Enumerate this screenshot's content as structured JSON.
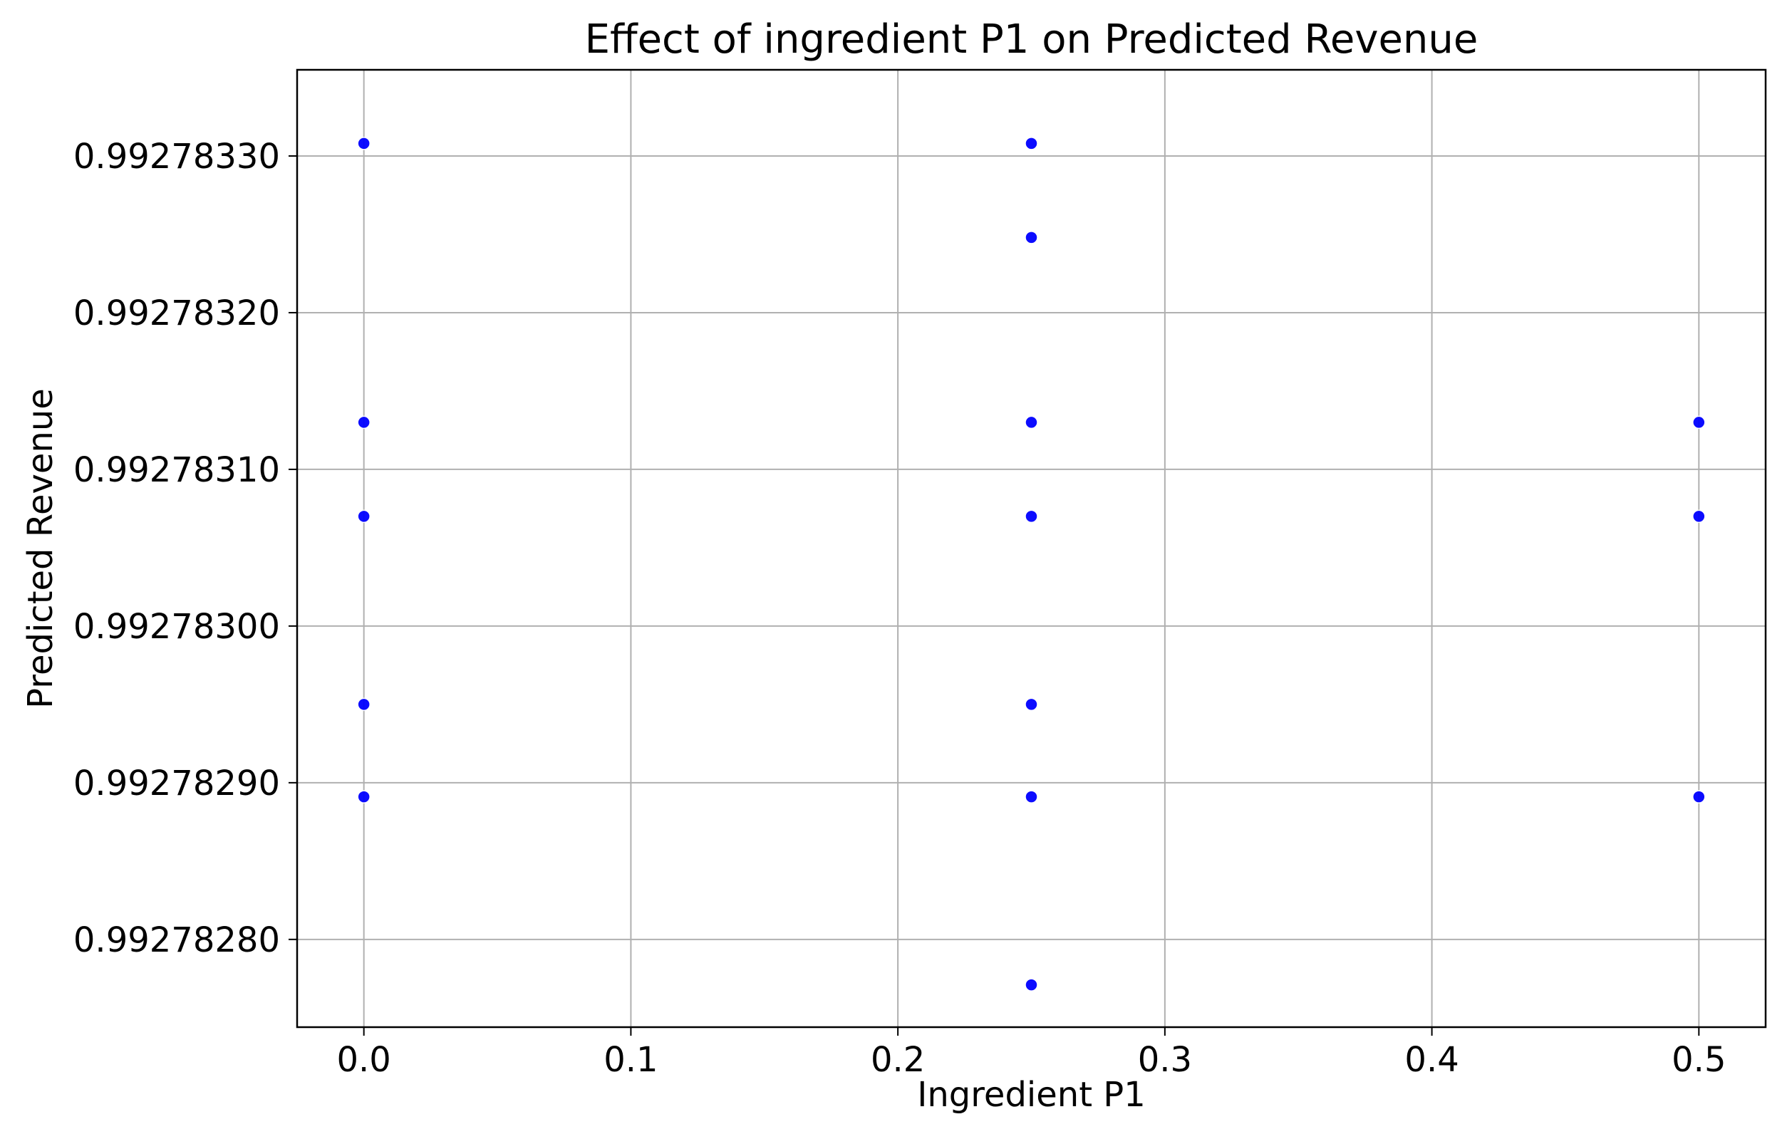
{
  "chart_data": {
    "type": "scatter",
    "title": "Effect of ingredient P1 on Predicted Revenue",
    "xlabel": "Ingredient P1",
    "ylabel": "Predicted Revenue",
    "xlim": [
      -0.025,
      0.525
    ],
    "ylim": [
      0.992782744,
      0.992783355
    ],
    "x_ticks": [
      0.0,
      0.1,
      0.2,
      0.3,
      0.4,
      0.5
    ],
    "x_tick_labels": [
      "0.0",
      "0.1",
      "0.2",
      "0.3",
      "0.4",
      "0.5"
    ],
    "y_ticks": [
      0.9927828,
      0.9927829,
      0.992783,
      0.9927831,
      0.9927832,
      0.9927833
    ],
    "y_tick_labels": [
      "0.99278280",
      "0.99278290",
      "0.99278300",
      "0.99278310",
      "0.99278320",
      "0.99278330"
    ],
    "grid": true,
    "legend": "none",
    "marker_color": "#0000ff",
    "points": [
      {
        "x": 0.0,
        "y": 0.992783308
      },
      {
        "x": 0.0,
        "y": 0.99278313
      },
      {
        "x": 0.0,
        "y": 0.99278307
      },
      {
        "x": 0.0,
        "y": 0.99278295
      },
      {
        "x": 0.0,
        "y": 0.992782891
      },
      {
        "x": 0.25,
        "y": 0.992783308
      },
      {
        "x": 0.25,
        "y": 0.992783248
      },
      {
        "x": 0.25,
        "y": 0.99278313
      },
      {
        "x": 0.25,
        "y": 0.99278307
      },
      {
        "x": 0.25,
        "y": 0.99278295
      },
      {
        "x": 0.25,
        "y": 0.992782891
      },
      {
        "x": 0.25,
        "y": 0.992782771
      },
      {
        "x": 0.5,
        "y": 0.99278313
      },
      {
        "x": 0.5,
        "y": 0.99278307
      },
      {
        "x": 0.5,
        "y": 0.992782891
      }
    ]
  }
}
